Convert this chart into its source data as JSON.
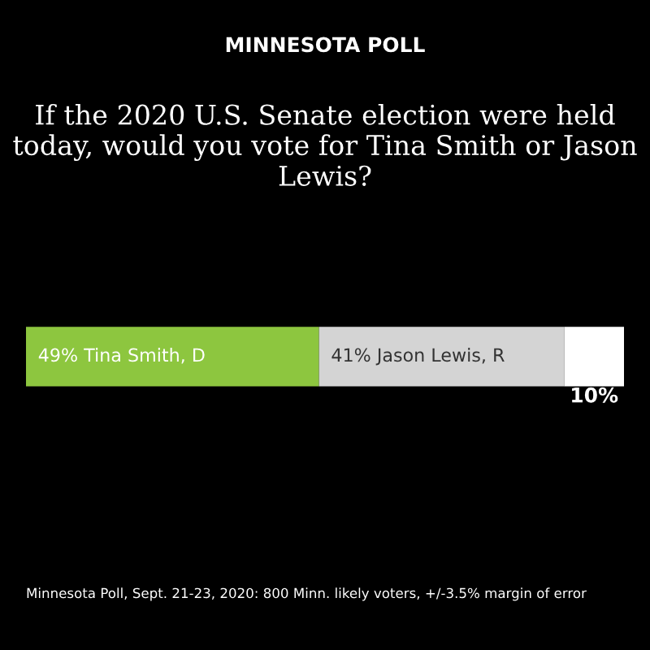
{
  "chart_data": {
    "type": "bar",
    "orientation": "horizontal",
    "stacked": true,
    "title": "MINNESOTA POLL",
    "subtitle": "If the 2020 U.S. Senate election were held today, would you vote for Tina Smith or Jason Lewis?",
    "categories": [
      null
    ],
    "series": [
      {
        "name": "Tina Smith, D",
        "color": "#8dc63f",
        "values": [
          49
        ],
        "value_labels": [
          "49%"
        ]
      },
      {
        "name": "Jason Lewis, R",
        "color": "#d4d4d4",
        "values": [
          41
        ],
        "value_labels": [
          "41%"
        ]
      },
      {
        "color": "#ffffff",
        "values": [
          10
        ],
        "value_labels": [
          "10%"
        ]
      }
    ],
    "annotations": [
      "Minnesota Poll, Sept. 21-23, 2020: 800 Minn. likely voters, +/-3.5% margin of error"
    ]
  }
}
